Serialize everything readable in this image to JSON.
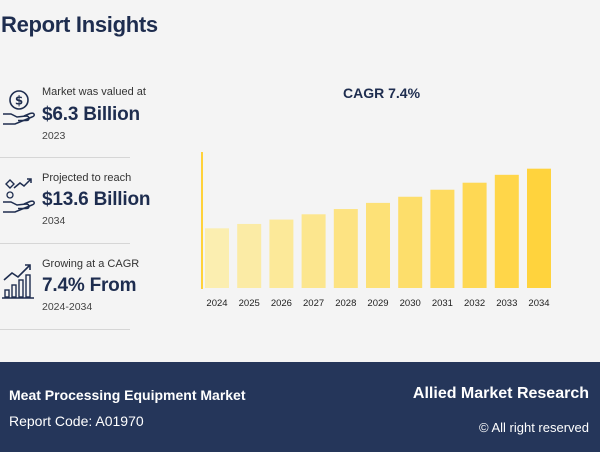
{
  "header": {
    "title": "Report Insights"
  },
  "insights": [
    {
      "label": "Market was valued at",
      "value": "$6.3 Billion",
      "year": "2023",
      "icon": "money-hand-icon"
    },
    {
      "label": "Projected to reach",
      "value": "$13.6 Billion",
      "year": "2034",
      "icon": "growth-hand-icon"
    },
    {
      "label": "Growing at a CAGR",
      "value": "7.4% From",
      "year": "2024-2034",
      "icon": "bar-growth-icon"
    }
  ],
  "footer": {
    "market": "Meat Processing Equipment Market",
    "code": "Report Code: A01970",
    "brand": "Allied Market Research",
    "rights": "© All right reserved"
  },
  "colors": {
    "accent": "#ffd23a",
    "footer_bg": "#25365a",
    "title": "#1e2d4f",
    "bar_light": "#fbeeb0",
    "bar_dark": "#ffd33d"
  },
  "chart_data": {
    "type": "bar",
    "title": "CAGR 7.4%",
    "xlabel": "",
    "ylabel": "",
    "categories": [
      "2024",
      "2025",
      "2026",
      "2027",
      "2028",
      "2029",
      "2030",
      "2031",
      "2032",
      "2033",
      "2034"
    ],
    "values": [
      6.8,
      7.3,
      7.8,
      8.4,
      9.0,
      9.7,
      10.4,
      11.2,
      12.0,
      12.9,
      13.6
    ],
    "ylim": [
      0,
      15.5
    ],
    "grid": false
  }
}
